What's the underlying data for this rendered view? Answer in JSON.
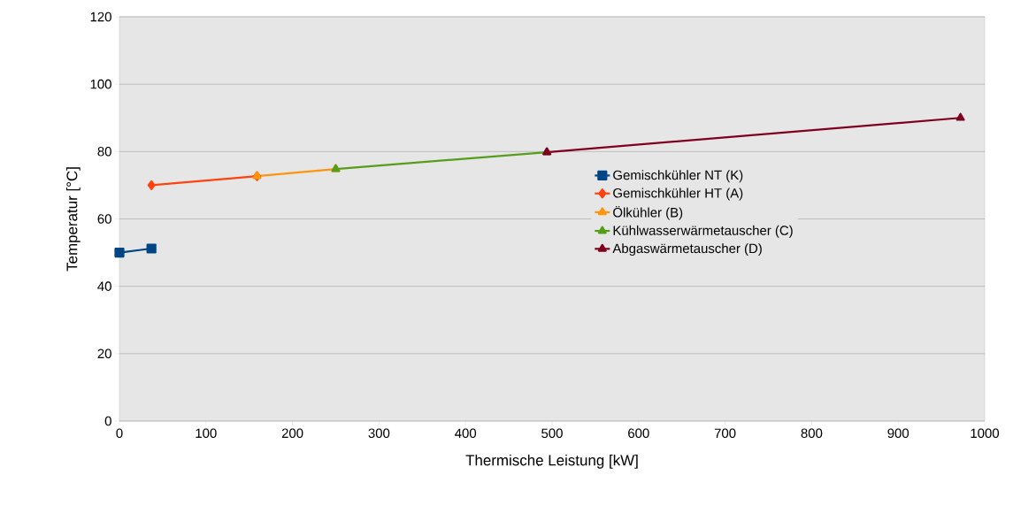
{
  "chart_data": {
    "type": "line",
    "xlabel": "Thermische Leistung [kW]",
    "ylabel": "Temperatur [°C]",
    "xlim": [
      0,
      1000
    ],
    "xticks": [
      0,
      100,
      200,
      300,
      400,
      500,
      600,
      700,
      800,
      900,
      1000
    ],
    "ylim": [
      0,
      120
    ],
    "yticks": [
      0,
      20,
      40,
      60,
      80,
      100,
      120
    ],
    "grid": "y",
    "legend": "right",
    "series": [
      {
        "name": "Gemischkühler NT (K)",
        "color": "#004586",
        "marker": "square",
        "x": [
          0,
          37
        ],
        "values": [
          50,
          51.2
        ]
      },
      {
        "name": "Gemischkühler HT (A)",
        "color": "#ff420e",
        "marker": "diamond",
        "x": [
          37,
          159
        ],
        "values": [
          70,
          72.7
        ]
      },
      {
        "name": "Ölkühler (B)",
        "color": "#ff950e",
        "marker": "triangle",
        "x": [
          159,
          250
        ],
        "values": [
          72.7,
          74.8
        ]
      },
      {
        "name": "Kühlwasserwärmetauscher (C)",
        "color": "#579d1c",
        "marker": "triangle",
        "x": [
          250,
          494
        ],
        "values": [
          74.8,
          79.8
        ]
      },
      {
        "name": "Abgaswärmetauscher (D)",
        "color": "#7e0021",
        "marker": "triangle",
        "x": [
          494,
          972
        ],
        "values": [
          79.8,
          90
        ]
      }
    ]
  }
}
